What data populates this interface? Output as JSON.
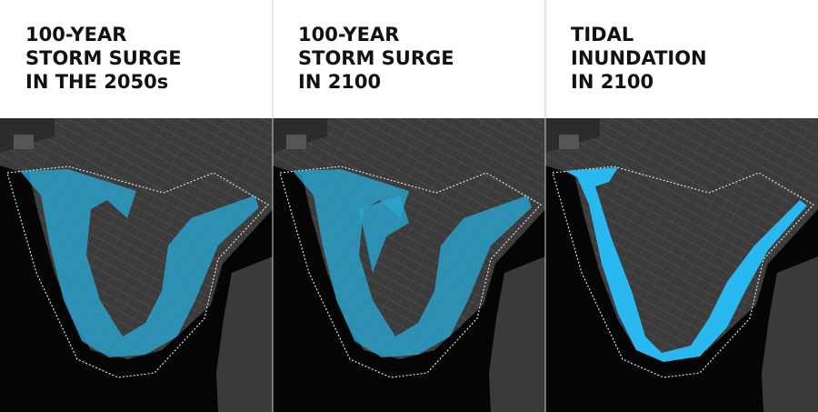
{
  "panels": [
    {
      "title": [
        "100-YEAR",
        "STORM SURGE",
        "IN THE 2050s"
      ]
    },
    {
      "title": [
        "100-YEAR",
        "STORM SURGE",
        "IN 2100"
      ]
    },
    {
      "title": [
        "TIDAL",
        "INUNDATION",
        "IN 2100"
      ]
    }
  ]
}
